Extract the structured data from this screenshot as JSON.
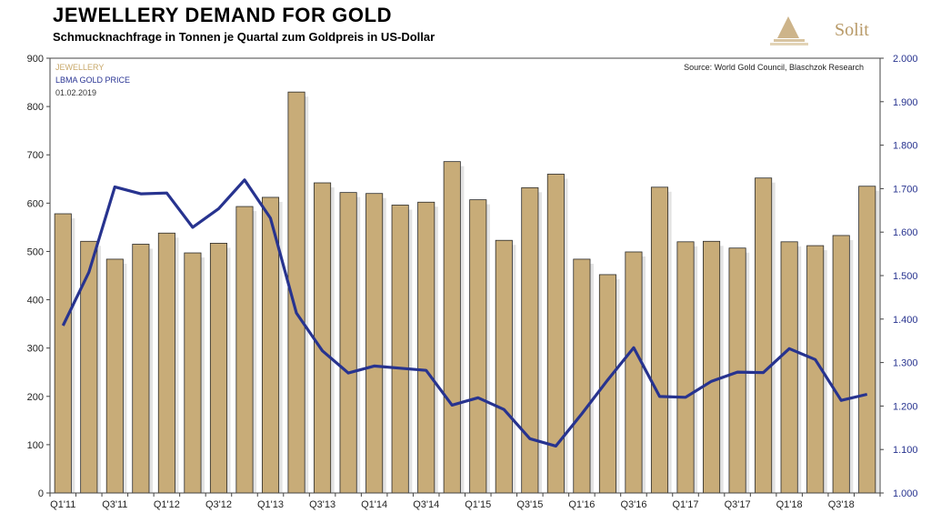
{
  "header": {
    "title": "JEWELLERY DEMAND FOR GOLD",
    "subtitle": "Schmucknachfrage in Tonnen je Quartal zum Goldpreis in US-Dollar",
    "logo_text": "Solit"
  },
  "legend": {
    "jewellery": "JEWELLERY",
    "gold": "LBMA GOLD PRICE",
    "date": "01.02.2019"
  },
  "source": "Source: World Gold Council, Blaschzok Research",
  "colors": {
    "bar": "#c8ac78",
    "line": "#27338f",
    "axis_right": "#27338f",
    "logo": "#b89a68"
  },
  "chart_data": {
    "type": "bar",
    "categories": [
      "Q1'11",
      "Q2'11",
      "Q3'11",
      "Q4'11",
      "Q1'12",
      "Q2'12",
      "Q3'12",
      "Q4'12",
      "Q1'13",
      "Q2'13",
      "Q3'13",
      "Q4'13",
      "Q1'14",
      "Q2'14",
      "Q3'14",
      "Q4'14",
      "Q1'15",
      "Q2'15",
      "Q3'15",
      "Q4'15",
      "Q1'16",
      "Q2'16",
      "Q3'16",
      "Q4'16",
      "Q1'17",
      "Q2'17",
      "Q3'17",
      "Q4'17",
      "Q1'18",
      "Q2'18",
      "Q3'18",
      "Q4'18"
    ],
    "x_tick_labels": [
      "Q1'11",
      "Q3'11",
      "Q1'12",
      "Q3'12",
      "Q1'13",
      "Q3'13",
      "Q1'14",
      "Q3'14",
      "Q1'15",
      "Q3'15",
      "Q1'16",
      "Q3'16",
      "Q1'17",
      "Q3'17",
      "Q1'18",
      "Q3'18"
    ],
    "series": [
      {
        "name": "JEWELLERY",
        "type": "bar",
        "axis": "left",
        "values": [
          578,
          521,
          484,
          515,
          538,
          497,
          517,
          593,
          612,
          830,
          642,
          622,
          620,
          596,
          602,
          686,
          607,
          523,
          632,
          660,
          484,
          452,
          499,
          633,
          520,
          521,
          507,
          652,
          520,
          512,
          533,
          635
        ]
      },
      {
        "name": "LBMA GOLD PRICE",
        "type": "line",
        "axis": "right",
        "values": [
          1385,
          1508,
          1704,
          1688,
          1690,
          1611,
          1654,
          1720,
          1632,
          1414,
          1327,
          1276,
          1292,
          1287,
          1282,
          1202,
          1219,
          1192,
          1125,
          1108,
          1182,
          1260,
          1334,
          1222,
          1220,
          1257,
          1278,
          1277,
          1332,
          1307,
          1213,
          1227
        ]
      }
    ],
    "y_left": {
      "min": 0,
      "max": 900,
      "step": 100,
      "tick_labels": [
        "0",
        "100",
        "200",
        "300",
        "400",
        "500",
        "600",
        "700",
        "800",
        "900"
      ]
    },
    "y_right": {
      "min": 1000,
      "max": 2000,
      "step": 100,
      "tick_labels": [
        "1.000",
        "1.100",
        "1.200",
        "1.300",
        "1.400",
        "1.500",
        "1.600",
        "1.700",
        "1.800",
        "1.900",
        "2.000"
      ]
    },
    "grid": false,
    "legend_position": "top-left"
  }
}
